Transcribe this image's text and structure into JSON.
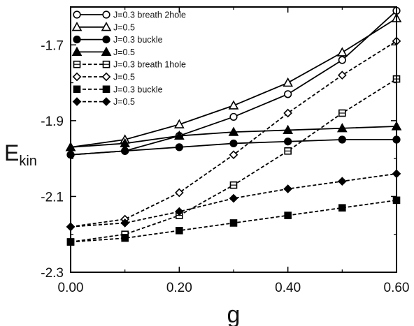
{
  "chart_data": {
    "type": "line",
    "xlabel": "g",
    "ylabel": "E",
    "ylabel_subscript": "kin",
    "xlim": [
      0,
      0.6
    ],
    "ylim": [
      -2.3,
      -1.6
    ],
    "xticks": [
      0,
      0.2,
      0.4,
      0.6
    ],
    "xtick_labels": [
      "0.00",
      "0.20",
      "0.40",
      "0.60"
    ],
    "yticks": [
      -2.3,
      -2.1,
      -1.9,
      -1.7
    ],
    "ytick_labels": [
      "-2.3",
      "-2.1",
      "-1.9",
      "-1.7"
    ],
    "grid": false,
    "legend_position": "top-left",
    "x": [
      0,
      0.1,
      0.2,
      0.3,
      0.4,
      0.5,
      0.6
    ],
    "series": [
      {
        "name": "J=0.3 breath 2hole",
        "marker": "circle-open",
        "dashed": false,
        "values": [
          -1.99,
          -1.98,
          -1.94,
          -1.89,
          -1.83,
          -1.74,
          -1.61
        ]
      },
      {
        "name": "J=0.5",
        "marker": "triangle-open",
        "dashed": false,
        "values": [
          -1.97,
          -1.95,
          -1.91,
          -1.86,
          -1.8,
          -1.72,
          -1.63
        ]
      },
      {
        "name": "J=0.3 buckle",
        "marker": "circle-filled",
        "dashed": false,
        "values": [
          -1.99,
          -1.98,
          -1.97,
          -1.96,
          -1.955,
          -1.95,
          -1.95
        ]
      },
      {
        "name": "J=0.5",
        "marker": "triangle-filled",
        "dashed": false,
        "values": [
          -1.97,
          -1.96,
          -1.94,
          -1.93,
          -1.925,
          -1.92,
          -1.915
        ]
      },
      {
        "name": "J=0.3 breath 1hole",
        "marker": "square-open",
        "dashed": true,
        "values": [
          -2.22,
          -2.2,
          -2.15,
          -2.07,
          -1.98,
          -1.88,
          -1.79
        ]
      },
      {
        "name": "J=0.5",
        "marker": "diamond-open",
        "dashed": true,
        "values": [
          -2.18,
          -2.16,
          -2.09,
          -1.99,
          -1.88,
          -1.78,
          -1.69
        ]
      },
      {
        "name": "J=0.3 buckle",
        "marker": "square-filled",
        "dashed": true,
        "values": [
          -2.22,
          -2.21,
          -2.19,
          -2.17,
          -2.15,
          -2.13,
          -2.11
        ]
      },
      {
        "name": "J=0.5",
        "marker": "diamond-filled",
        "dashed": true,
        "values": [
          -2.18,
          -2.17,
          -2.14,
          -2.105,
          -2.08,
          -2.06,
          -2.04
        ]
      }
    ]
  }
}
